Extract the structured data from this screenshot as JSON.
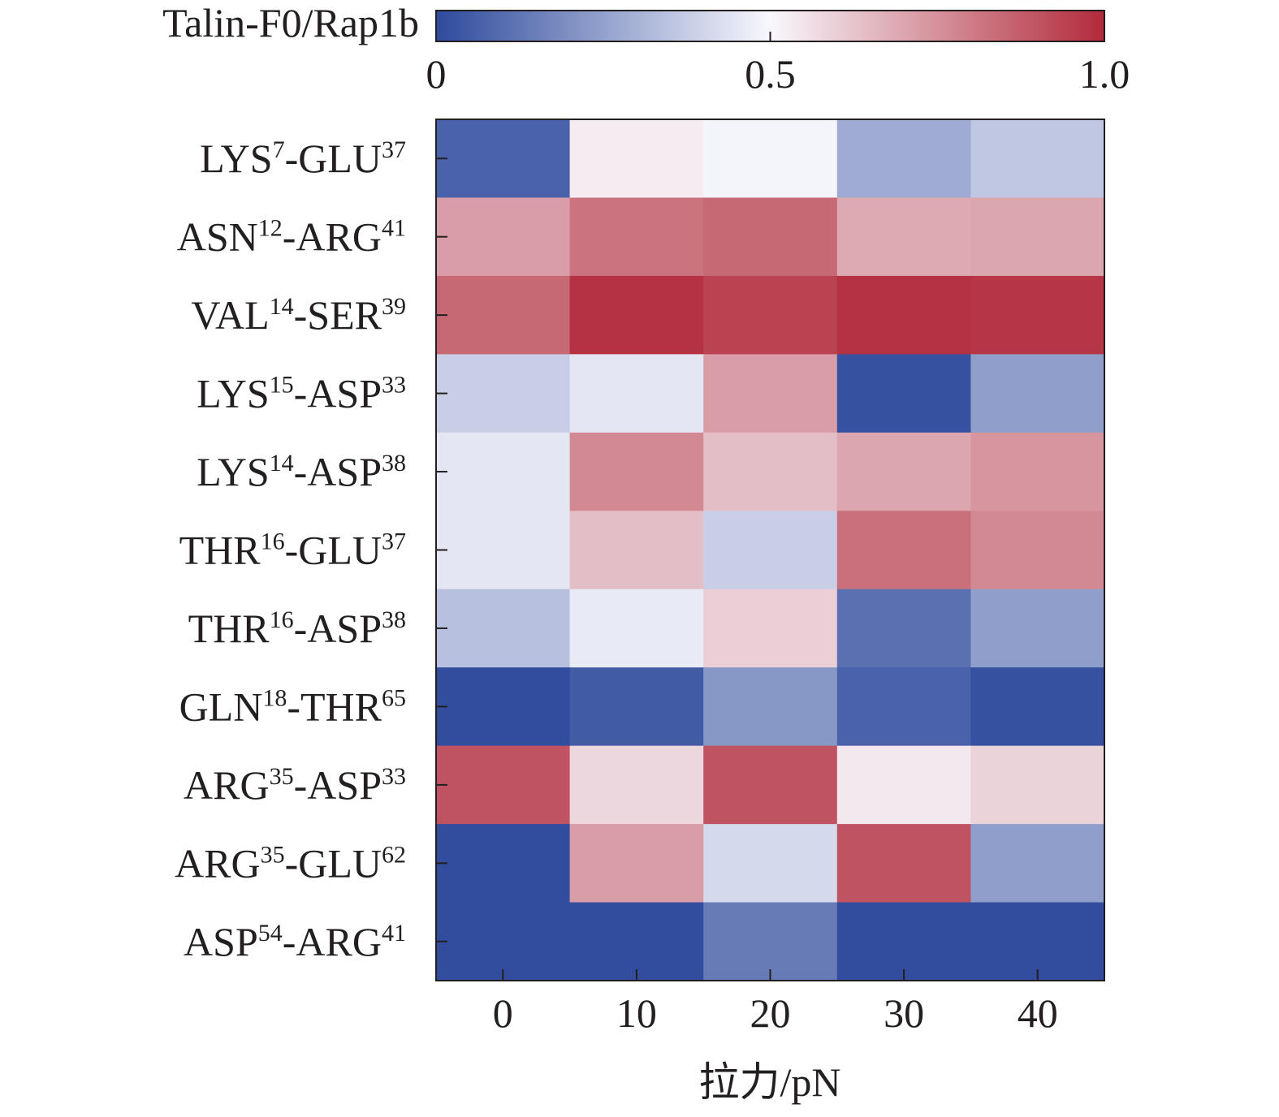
{
  "chart_data": {
    "type": "heatmap",
    "colorbar": {
      "label": "Talin-F0/Rap1b",
      "min": 0,
      "max": 1.0,
      "ticks": [
        "0",
        "0.5",
        "1.0"
      ],
      "tick_values": [
        0,
        0.5,
        1.0
      ],
      "colors": [
        "#2e4a9b",
        "#f8f8fd",
        "#b22a3a"
      ]
    },
    "xlabel": "拉力/pN",
    "x": [
      "0",
      "10",
      "20",
      "30",
      "40"
    ],
    "rows": [
      {
        "name": "LYS",
        "sup1": "7",
        "name2": "GLU",
        "sup2": "37"
      },
      {
        "name": "ASN",
        "sup1": "12",
        "name2": "ARG",
        "sup2": "41"
      },
      {
        "name": "VAL",
        "sup1": "14",
        "name2": "SER",
        "sup2": "39"
      },
      {
        "name": "LYS",
        "sup1": "15",
        "name2": "ASP",
        "sup2": "33"
      },
      {
        "name": "LYS",
        "sup1": "14",
        "name2": "ASP",
        "sup2": "38"
      },
      {
        "name": "THR",
        "sup1": "16",
        "name2": "GLU",
        "sup2": "37"
      },
      {
        "name": "THR",
        "sup1": "16",
        "name2": "ASP",
        "sup2": "38"
      },
      {
        "name": "GLN",
        "sup1": "18",
        "name2": "THR",
        "sup2": "65"
      },
      {
        "name": "ARG",
        "sup1": "35",
        "name2": "ASP",
        "sup2": "33"
      },
      {
        "name": "ARG",
        "sup1": "35",
        "name2": "GLU",
        "sup2": "62"
      },
      {
        "name": "ASP",
        "sup1": "54",
        "name2": "ARG",
        "sup2": "41"
      }
    ],
    "values": [
      [
        0.07,
        0.53,
        0.49,
        0.28,
        0.36
      ],
      [
        0.72,
        0.82,
        0.85,
        0.69,
        0.7
      ],
      [
        0.85,
        0.98,
        0.94,
        0.98,
        0.97
      ],
      [
        0.38,
        0.45,
        0.72,
        0.02,
        0.24
      ],
      [
        0.45,
        0.77,
        0.64,
        0.7,
        0.74
      ],
      [
        0.45,
        0.64,
        0.38,
        0.83,
        0.77
      ],
      [
        0.34,
        0.46,
        0.6,
        0.11,
        0.24
      ],
      [
        0.01,
        0.05,
        0.22,
        0.07,
        0.02
      ],
      [
        0.9,
        0.58,
        0.9,
        0.54,
        0.59
      ],
      [
        0.01,
        0.72,
        0.41,
        0.9,
        0.24
      ],
      [
        0.01,
        0.01,
        0.14,
        0.01,
        0.01
      ]
    ]
  }
}
